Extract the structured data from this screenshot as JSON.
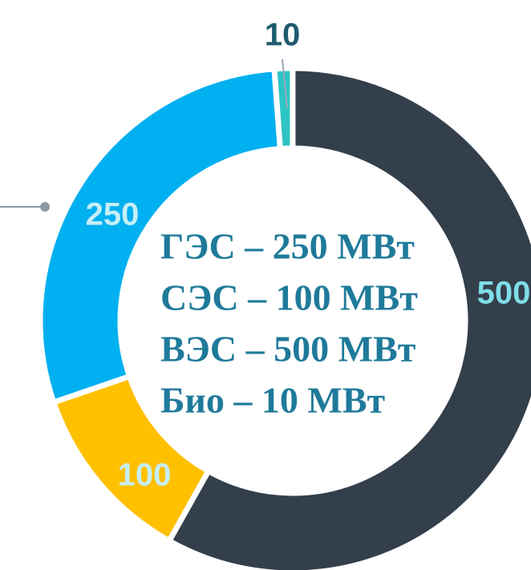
{
  "chart_data": {
    "type": "donut",
    "values": [
      10,
      500,
      100,
      250
    ],
    "colors": [
      "#2ec4c4",
      "#333f4b",
      "#ffc000",
      "#00b0f0"
    ],
    "center_text": [
      "ГЭС – 250 МВт",
      "СЭС – 100 МВт",
      "ВЭС – 500 МВт",
      "Био – 10 МВт"
    ]
  }
}
